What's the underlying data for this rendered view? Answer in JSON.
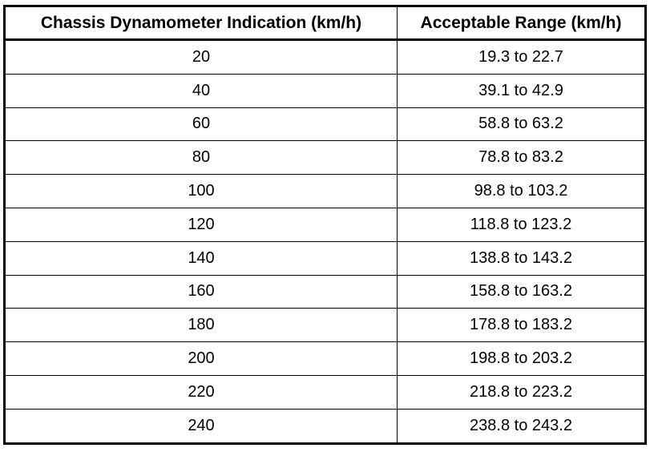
{
  "table": {
    "header": [
      "Chassis Dynamometer Indication (km/h)",
      "Acceptable Range (km/h)"
    ],
    "rows": [
      [
        "20",
        "19.3 to 22.7"
      ],
      [
        "40",
        "39.1 to 42.9"
      ],
      [
        "60",
        "58.8 to 63.2"
      ],
      [
        "80",
        "78.8 to 83.2"
      ],
      [
        "100",
        "98.8 to 103.2"
      ],
      [
        "120",
        "118.8 to 123.2"
      ],
      [
        "140",
        "138.8 to 143.2"
      ],
      [
        "160",
        "158.8 to 163.2"
      ],
      [
        "180",
        "178.8 to 183.2"
      ],
      [
        "200",
        "198.8 to 203.2"
      ],
      [
        "220",
        "218.8 to 223.2"
      ],
      [
        "240",
        "238.8 to 243.2"
      ]
    ]
  }
}
